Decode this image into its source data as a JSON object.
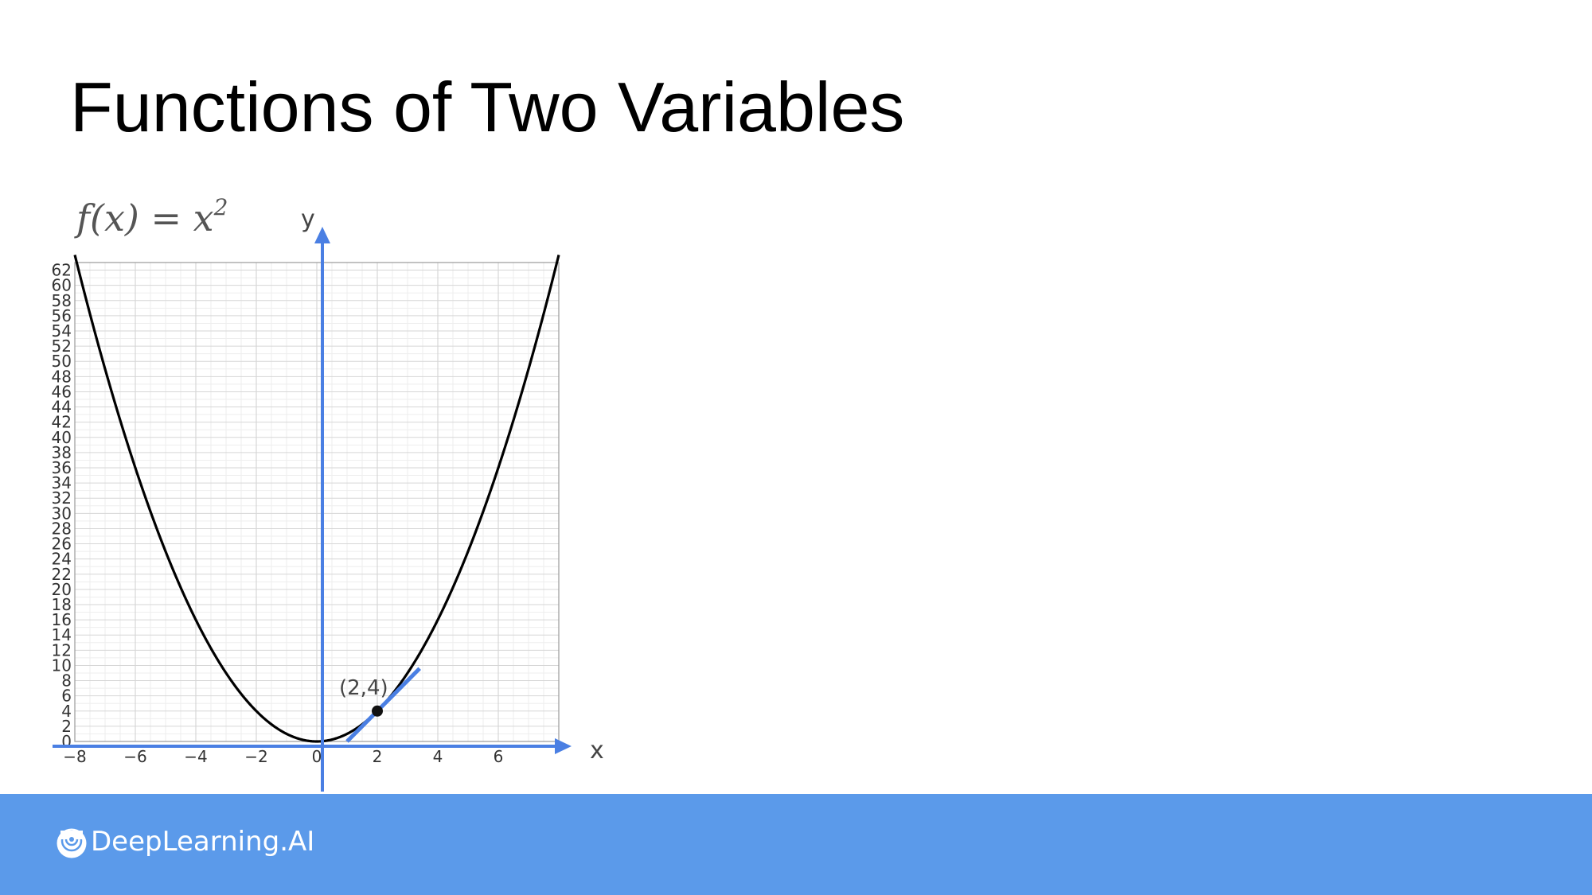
{
  "slide": {
    "title": "Functions of Two Variables"
  },
  "chart_data": {
    "type": "line",
    "function_label": {
      "f": "f",
      "arg": "(x) = x",
      "exp": "2"
    },
    "xlabel": "x",
    "ylabel": "y",
    "xlim": [
      -8,
      8
    ],
    "ylim": [
      0,
      63
    ],
    "x_ticks": [
      "−8",
      "−6",
      "−4",
      "−2",
      "0",
      "2",
      "4",
      "6"
    ],
    "y_ticks": [
      "0",
      "2",
      "4",
      "6",
      "8",
      "10",
      "12",
      "14",
      "16",
      "18",
      "20",
      "22",
      "24",
      "26",
      "28",
      "30",
      "32",
      "34",
      "36",
      "38",
      "40",
      "42",
      "44",
      "46",
      "48",
      "50",
      "52",
      "54",
      "56",
      "58",
      "60",
      "62"
    ],
    "series": [
      {
        "expression": "x^2",
        "x_range": [
          -8,
          8
        ],
        "color": "#000000"
      }
    ],
    "tangent_line": {
      "point": [
        2,
        4
      ],
      "slope": 4,
      "x_range": [
        1,
        3.4
      ],
      "color": "#4a7fe3"
    },
    "points": [
      {
        "x": 2,
        "y": 4,
        "label": "(2,4)"
      }
    ],
    "axis_color": "#4a7fe3",
    "grid": true
  },
  "footer": {
    "brand": "DeepLearning.AI",
    "color": "#5b9aea"
  }
}
